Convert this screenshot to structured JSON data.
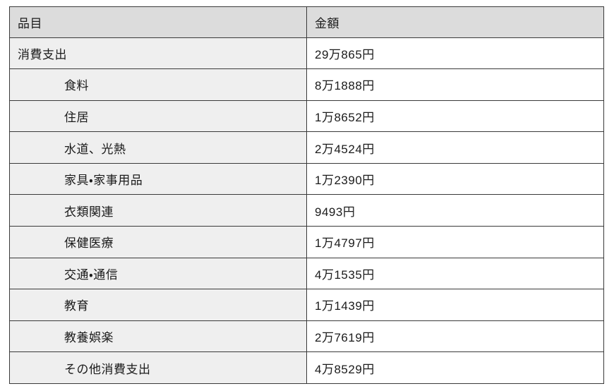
{
  "table": {
    "title": "household-expense-table",
    "headers": {
      "item": "品目",
      "amount": "金額"
    },
    "rows": [
      {
        "item": "消費支出",
        "amount": "29万865円",
        "indent": false
      },
      {
        "item": "食料",
        "amount": "8万1888円",
        "indent": true
      },
      {
        "item": "住居",
        "amount": "1万8652円",
        "indent": true
      },
      {
        "item": "水道、光熱",
        "amount": "2万4524円",
        "indent": true
      },
      {
        "item": "家具・家事用品",
        "amount": "1万2390円",
        "indent": true
      },
      {
        "item": "衣類関連",
        "amount": "9493円",
        "indent": true
      },
      {
        "item": "保健医療",
        "amount": "1万4797円",
        "indent": true
      },
      {
        "item": "交通・通信",
        "amount": "4万1535円",
        "indent": true
      },
      {
        "item": "教育",
        "amount": "1万1439円",
        "indent": true
      },
      {
        "item": "教養娯楽",
        "amount": "2万7619円",
        "indent": true
      },
      {
        "item": "その他消費支出",
        "amount": "4万8529円",
        "indent": true
      }
    ],
    "colors": {
      "header_bg": "#dcdcdc",
      "item_column_bg": "#efefef",
      "amount_column_bg": "#ffffff",
      "border": "#3a3a3a",
      "text": "#1b1b1b"
    }
  }
}
